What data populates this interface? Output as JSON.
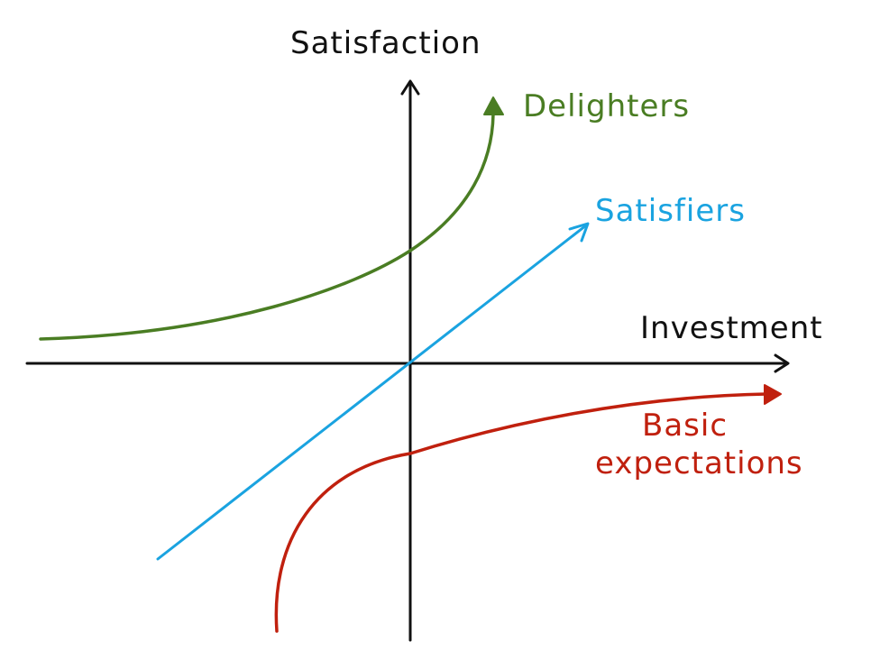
{
  "axes": {
    "y_label": "Satisfaction",
    "x_label": "Investment",
    "color": "#111111"
  },
  "curves": [
    {
      "id": "delighters",
      "label": "Delighters",
      "color": "#4a7d23"
    },
    {
      "id": "satisfiers",
      "label": "Satisfiers",
      "color": "#1aa3e0"
    },
    {
      "id": "basic",
      "label_line1": "Basic",
      "label_line2": "expectations",
      "color": "#c0200e"
    }
  ]
}
